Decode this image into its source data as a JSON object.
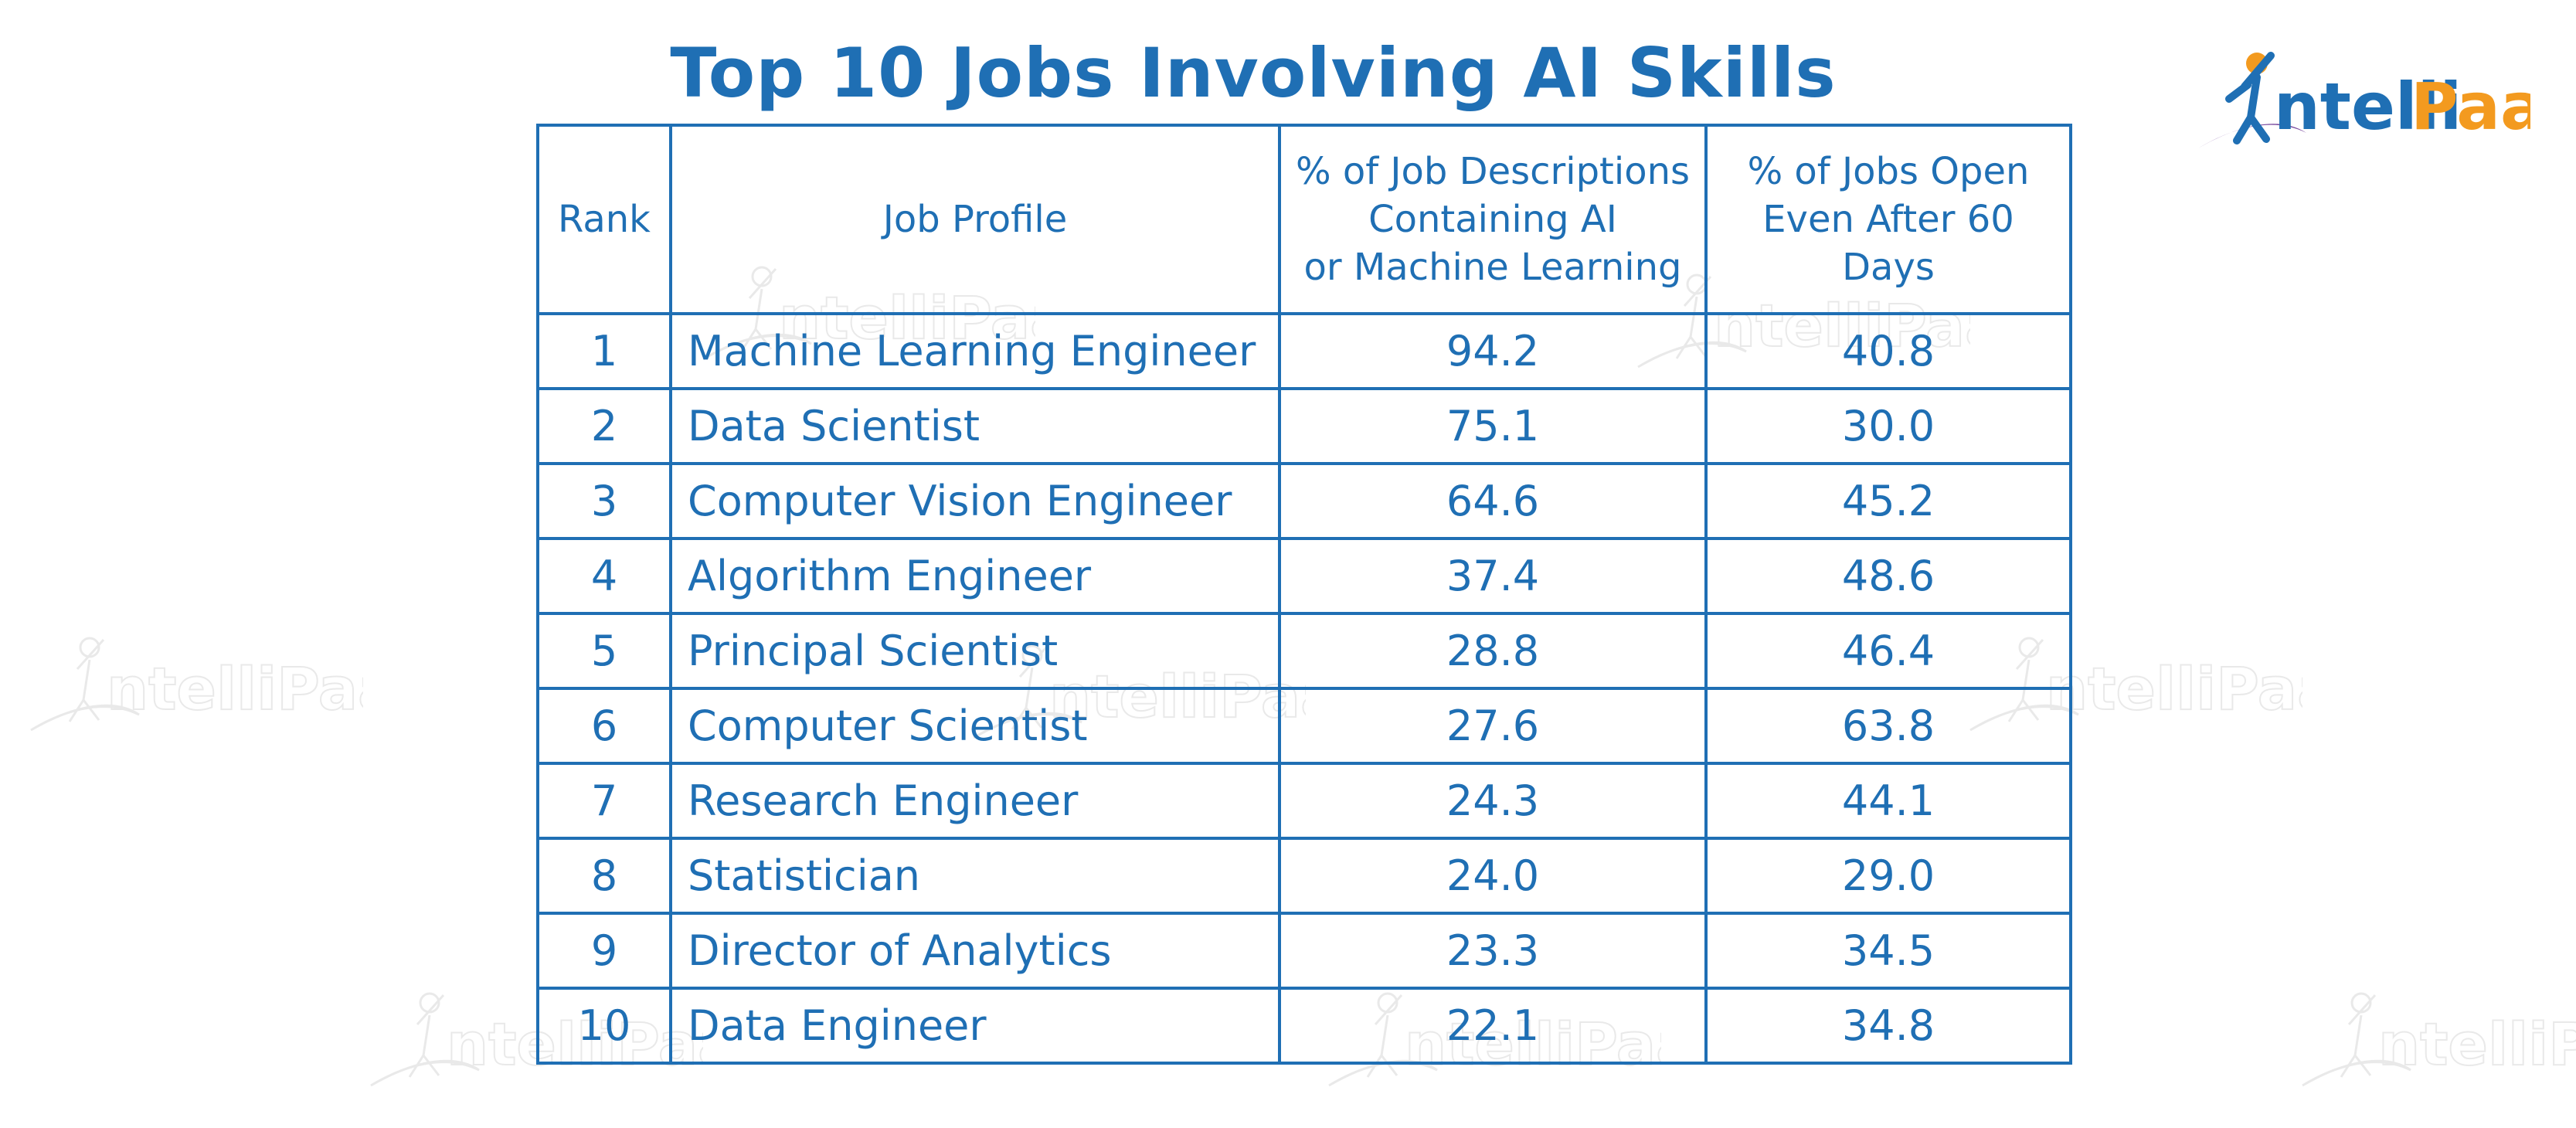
{
  "colors": {
    "primary": "#1f6fb4",
    "logo_blue": "#1f6fb4",
    "logo_orange": "#f39a1f",
    "background": "#ffffff"
  },
  "title": "Top 10 Jobs Involving AI Skills",
  "logo": {
    "text_blue": "ntelli",
    "text_orange": "Paat",
    "icon": "person-jumping-swoosh-logo"
  },
  "table": {
    "headers": {
      "rank": "Rank",
      "job": "Job Profile",
      "pct_descriptions": "% of Job Descriptions\nContaining AI\nor Machine Learning",
      "pct_open": "% of Jobs Open\nEven After 60\nDays"
    },
    "rows": [
      {
        "rank": "1",
        "job": "Machine Learning Engineer",
        "pct_descriptions": "94.2",
        "pct_open": "40.8"
      },
      {
        "rank": "2",
        "job": "Data Scientist",
        "pct_descriptions": "75.1",
        "pct_open": "30.0"
      },
      {
        "rank": "3",
        "job": "Computer Vision Engineer",
        "pct_descriptions": "64.6",
        "pct_open": "45.2"
      },
      {
        "rank": "4",
        "job": "Algorithm Engineer",
        "pct_descriptions": "37.4",
        "pct_open": "48.6"
      },
      {
        "rank": "5",
        "job": "Principal Scientist",
        "pct_descriptions": "28.8",
        "pct_open": "46.4"
      },
      {
        "rank": "6",
        "job": "Computer Scientist",
        "pct_descriptions": "27.6",
        "pct_open": "63.8"
      },
      {
        "rank": "7",
        "job": "Research Engineer",
        "pct_descriptions": "24.3",
        "pct_open": "44.1"
      },
      {
        "rank": "8",
        "job": "Statistician",
        "pct_descriptions": "24.0",
        "pct_open": "29.0"
      },
      {
        "rank": "9",
        "job": "Director of Analytics",
        "pct_descriptions": "23.3",
        "pct_open": "34.5"
      },
      {
        "rank": "10",
        "job": "Data Engineer",
        "pct_descriptions": "22.1",
        "pct_open": "34.8"
      }
    ]
  }
}
